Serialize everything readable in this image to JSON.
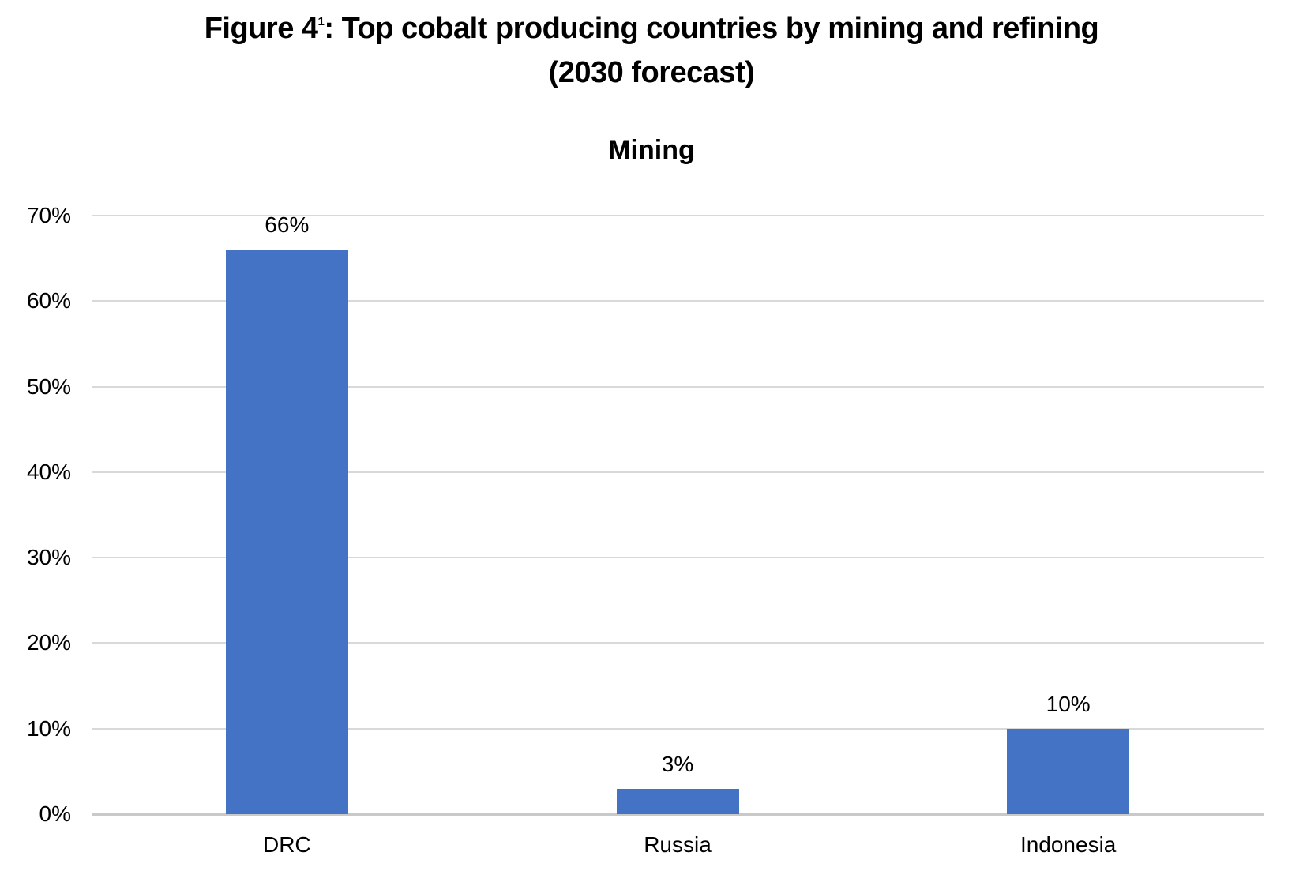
{
  "header": {
    "title_prefix": "Figure 4",
    "title_note_marker": "1",
    "title_suffix": ": Top cobalt producing countries by mining and refining",
    "title_line2": "(2030 forecast)"
  },
  "chart_data": {
    "type": "bar",
    "title": "Mining",
    "categories": [
      "DRC",
      "Russia",
      "Indonesia"
    ],
    "values": [
      66,
      3,
      10
    ],
    "data_labels": [
      "66%",
      "3%",
      "10%"
    ],
    "ytick_labels": [
      "0%",
      "10%",
      "20%",
      "30%",
      "40%",
      "50%",
      "60%",
      "70%"
    ],
    "ylim": [
      0,
      70
    ],
    "ytick_step": 10,
    "grid": true,
    "legend": "none",
    "bar_color": "#4472c4",
    "gridline_color": "#d9d9d9",
    "axis_line_color": "#c9c9c9",
    "text_color": "#000000",
    "background_color": "#ffffff"
  }
}
